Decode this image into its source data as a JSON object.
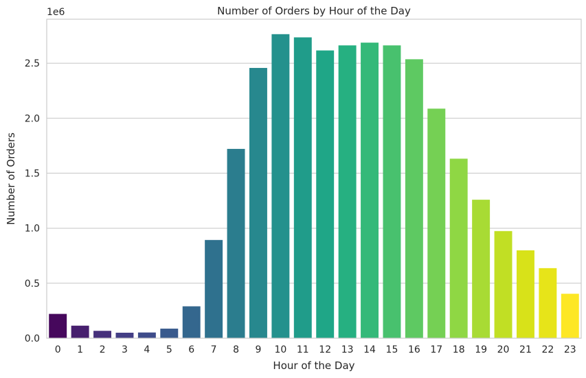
{
  "chart_data": {
    "type": "bar",
    "title": "Number of Orders by Hour of the Day",
    "xlabel": "Hour of the Day",
    "ylabel": "Number of Orders",
    "y_offset_label": "1e6",
    "categories": [
      "0",
      "1",
      "2",
      "3",
      "4",
      "5",
      "6",
      "7",
      "8",
      "9",
      "10",
      "11",
      "12",
      "13",
      "14",
      "15",
      "16",
      "17",
      "18",
      "19",
      "20",
      "21",
      "22",
      "23"
    ],
    "values": [
      221000,
      114000,
      67000,
      50000,
      52000,
      87000,
      290000,
      893000,
      1721000,
      2457000,
      2764000,
      2735000,
      2616000,
      2662000,
      2687000,
      2662000,
      2536000,
      2087000,
      1632000,
      1259000,
      974000,
      799000,
      637000,
      404000
    ],
    "ylim": [
      0,
      2900000
    ],
    "yticks": [
      0,
      500000,
      1000000,
      1500000,
      2000000,
      2500000
    ],
    "ytick_labels": [
      "0.0",
      "0.5",
      "1.0",
      "1.5",
      "2.0",
      "2.5"
    ],
    "grid": "horizontal",
    "palette": "viridis",
    "colors": [
      "#46085c",
      "#471f6e",
      "#46307b",
      "#433e85",
      "#3e4c8a",
      "#395a8d",
      "#34678e",
      "#2f718e",
      "#2b7d8e",
      "#27888e",
      "#24918d",
      "#209c8a",
      "#1fa687",
      "#26b081",
      "#34b979",
      "#48c16e",
      "#5ec962",
      "#75d054",
      "#8fd744",
      "#a8db34",
      "#c1df24",
      "#d8e219",
      "#e7e419",
      "#fde725"
    ]
  }
}
